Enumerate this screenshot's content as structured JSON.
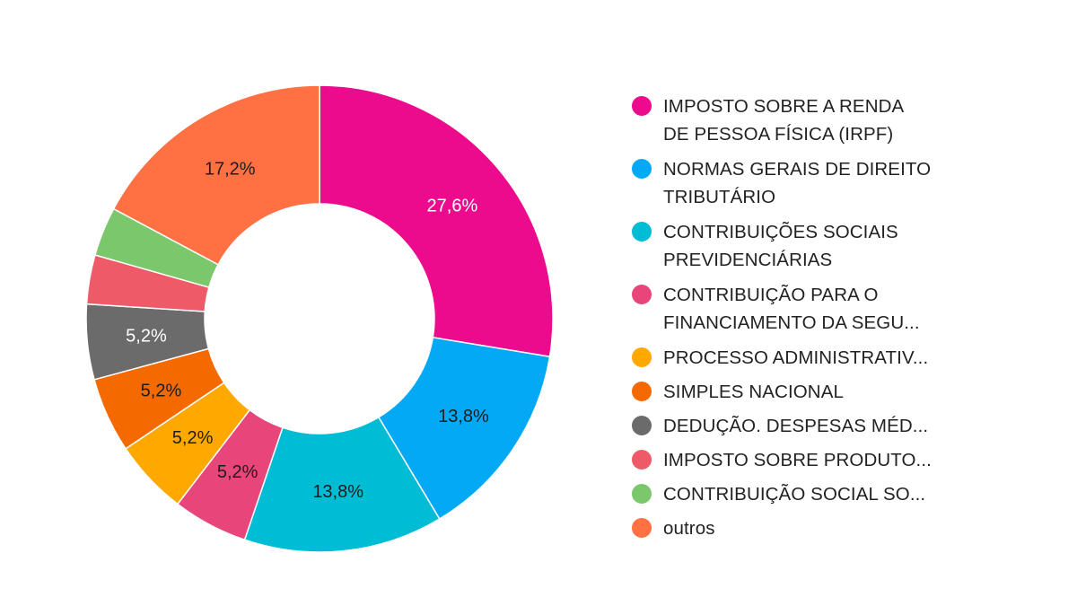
{
  "chart_data": {
    "type": "pie",
    "subtype": "donut",
    "labels_lines": [
      [
        "IMPOSTO SOBRE A RENDA",
        "DE PESSOA FÍSICA (IRPF)"
      ],
      [
        "NORMAS GERAIS DE DIREITO",
        "TRIBUTÁRIO"
      ],
      [
        "CONTRIBUIÇÕES SOCIAIS",
        "PREVIDENCIÁRIAS"
      ],
      [
        "CONTRIBUIÇÃO PARA O",
        "FINANCIAMENTO DA SEGU..."
      ],
      [
        "PROCESSO ADMINISTRATIV..."
      ],
      [
        "SIMPLES NACIONAL"
      ],
      [
        "DEDUÇÃO. DESPESAS MÉD..."
      ],
      [
        "IMPOSTO SOBRE PRODUTO..."
      ],
      [
        "CONTRIBUIÇÃO SOCIAL SO..."
      ],
      [
        "outros"
      ]
    ],
    "values": [
      27.6,
      13.8,
      13.8,
      5.2,
      5.2,
      5.2,
      5.2,
      3.4,
      3.4,
      17.2
    ],
    "data_labels": [
      "27,6%",
      "13,8%",
      "13,8%",
      "5,2%",
      "5,2%",
      "5,2%",
      "5,2%",
      "",
      "",
      "17,2%"
    ],
    "colors": [
      "#ec0a8d",
      "#03a9f4",
      "#00bcd4",
      "#e8457a",
      "#ffa800",
      "#f46a00",
      "#6b6b6b",
      "#ef5a69",
      "#7bc86c",
      "#ff7043"
    ],
    "label_colors": [
      "#ffffff",
      "#1d1d1d",
      "#1d1d1d",
      "#1d1d1d",
      "#1d1d1d",
      "#1d1d1d",
      "#ffffff",
      "#1d1d1d",
      "#1d1d1d",
      "#1d1d1d"
    ],
    "legend_position": "right"
  }
}
